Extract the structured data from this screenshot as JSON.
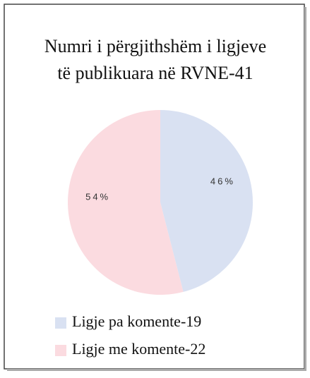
{
  "chart_data": {
    "type": "pie",
    "title": [
      "Numri i përgjithshëm i ligjeve",
      "të publikuara në RVNE-41"
    ],
    "categories": [
      "Ligje pa komente-19",
      "Ligje me komente-22"
    ],
    "values": [
      46,
      54
    ],
    "value_labels": [
      "46%",
      "54%"
    ],
    "colors": [
      "#d9e1f2",
      "#fbdbe0"
    ],
    "legend": "bottom"
  }
}
